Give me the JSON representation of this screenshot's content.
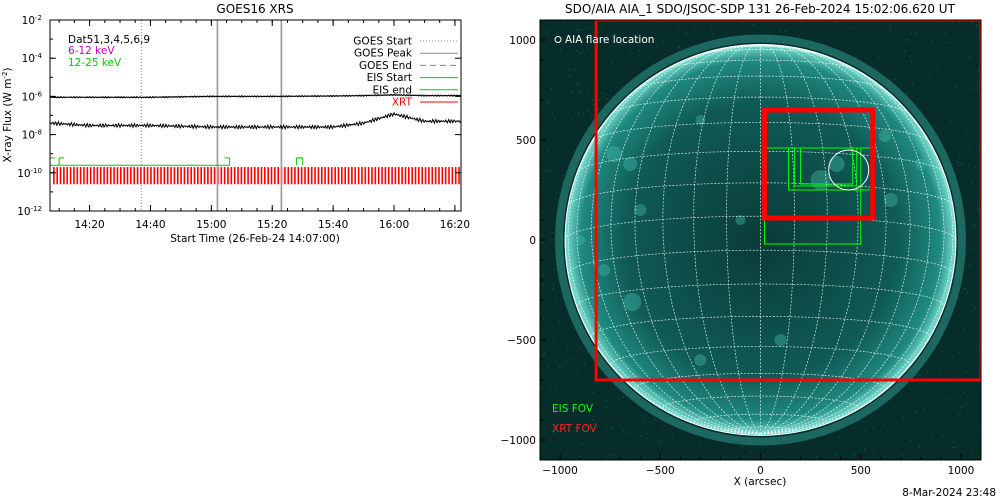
{
  "chart_data": [
    {
      "type": "line",
      "title": "GOES16 XRS",
      "xlabel": "Start Time (26-Feb-24 14:07:00)",
      "ylabel": "X-ray Flux (W m^-2)",
      "ylabel_prefix": "X-ray Flux (W m",
      "ylabel_sup": "-2",
      "ylabel_suffix": ")",
      "y_scale": "log",
      "ylim": [
        1e-12,
        0.01
      ],
      "xlim": [
        "14:07",
        "16:22"
      ],
      "x_tick_labels": [
        "14:20",
        "14:40",
        "15:00",
        "15:20",
        "15:40",
        "16:00",
        "16:20"
      ],
      "y_tick_labels": [
        {
          "base": "10",
          "exp": "-2"
        },
        {
          "base": "10",
          "exp": "-4"
        },
        {
          "base": "10",
          "exp": "-6"
        },
        {
          "base": "10",
          "exp": "-8"
        },
        {
          "base": "10",
          "exp": "-10"
        },
        {
          "base": "10",
          "exp": "-12"
        }
      ],
      "annotations": [
        "Dat51,3,4,5,6,9",
        "6-12 keV",
        "12-25 keV"
      ],
      "legend": [
        {
          "label": "GOES Start",
          "style": "dotted",
          "color": "#888888"
        },
        {
          "label": "GOES Peak",
          "style": "solid",
          "color": "#888888"
        },
        {
          "label": "GOES End",
          "style": "dashed",
          "color": "#888888"
        },
        {
          "label": "EIS Start",
          "style": "solid",
          "color": "#00cc00"
        },
        {
          "label": "EIS end",
          "style": "solid",
          "color": "#00cc00"
        },
        {
          "label": "XRT",
          "style": "solid",
          "color": "#ff0000"
        }
      ],
      "legend_placement": "top-right",
      "series": [
        {
          "color": "#000000",
          "x": [
            "14:07",
            "14:40",
            "15:00",
            "15:20",
            "15:40",
            "15:50",
            "16:00",
            "16:10",
            "16:22"
          ],
          "values": [
            9e-07,
            9e-07,
            1e-06,
            1e-06,
            1.05e-06,
            1.1e-06,
            1.2e-06,
            1.1e-06,
            1.1e-06
          ]
        },
        {
          "color": "#000000",
          "x": [
            "14:07",
            "14:20",
            "14:40",
            "15:00",
            "15:20",
            "15:40",
            "15:50",
            "16:00",
            "16:10",
            "16:22"
          ],
          "values": [
            4e-08,
            3e-08,
            3e-08,
            2.5e-08,
            2.5e-08,
            2.5e-08,
            4e-08,
            1.2e-07,
            5e-08,
            5e-08
          ]
        }
      ],
      "markers": {
        "goes_start": [
          "14:37"
        ],
        "goes_peak": [
          "15:02",
          "15:23"
        ],
        "eis_start": [
          "14:07",
          "14:10",
          "15:28"
        ],
        "eis_end": [
          "15:06",
          "15:30"
        ]
      },
      "colors": {
        "goes_6_12": "#cc00cc",
        "goes_12_25": "#00cc00",
        "xrt": "#ff0000",
        "eis": "#00cc00",
        "goes_marker": "#999999"
      }
    },
    {
      "type": "scatter",
      "title": "SDO/AIA AIA_1 SDO/JSOC-SDP 131 26-Feb-2024 15:02:06.620 UT",
      "xlabel": "X (arcsec)",
      "ylabel": "",
      "xlim": [
        -1100,
        1100
      ],
      "ylim": [
        -1100,
        1100
      ],
      "x_tick_labels": [
        "-1000",
        "-500",
        "0",
        "500",
        "1000"
      ],
      "y_tick_labels": [
        "1000",
        "500",
        "0",
        "-500",
        "-1000"
      ],
      "solar_radius_arcsec": 975,
      "flare_location": {
        "x": 440,
        "y": 350,
        "radius": 100
      },
      "flare_label": "AIA flare location",
      "eis_fov": [
        {
          "x0": 140,
          "x1": 560,
          "y0": 250,
          "y1": 460
        },
        {
          "x0": 170,
          "x1": 480,
          "y0": 270,
          "y1": 460
        },
        {
          "x0": 200,
          "x1": 460,
          "y0": 280,
          "y1": 460
        },
        {
          "x0": 20,
          "x1": 500,
          "y0": -20,
          "y1": 460
        }
      ],
      "xrt_fov": [
        {
          "x0": -820,
          "x1": 1100,
          "y0": -700,
          "y1": 1100,
          "width": 3
        },
        {
          "x0": 20,
          "x1": 560,
          "y0": 110,
          "y1": 650,
          "width": 5
        }
      ],
      "legend": [
        "EIS FOV",
        "XRT FOV"
      ],
      "legend_placement": "bottom-left",
      "colors": {
        "sun": "#0f6a64",
        "limb": "#3ea79c",
        "grid": "#ffffff",
        "eis": "#00ff00",
        "xrt": "#ff0000"
      }
    }
  ],
  "footer": {
    "timestamp": "8-Mar-2024 23:48"
  }
}
